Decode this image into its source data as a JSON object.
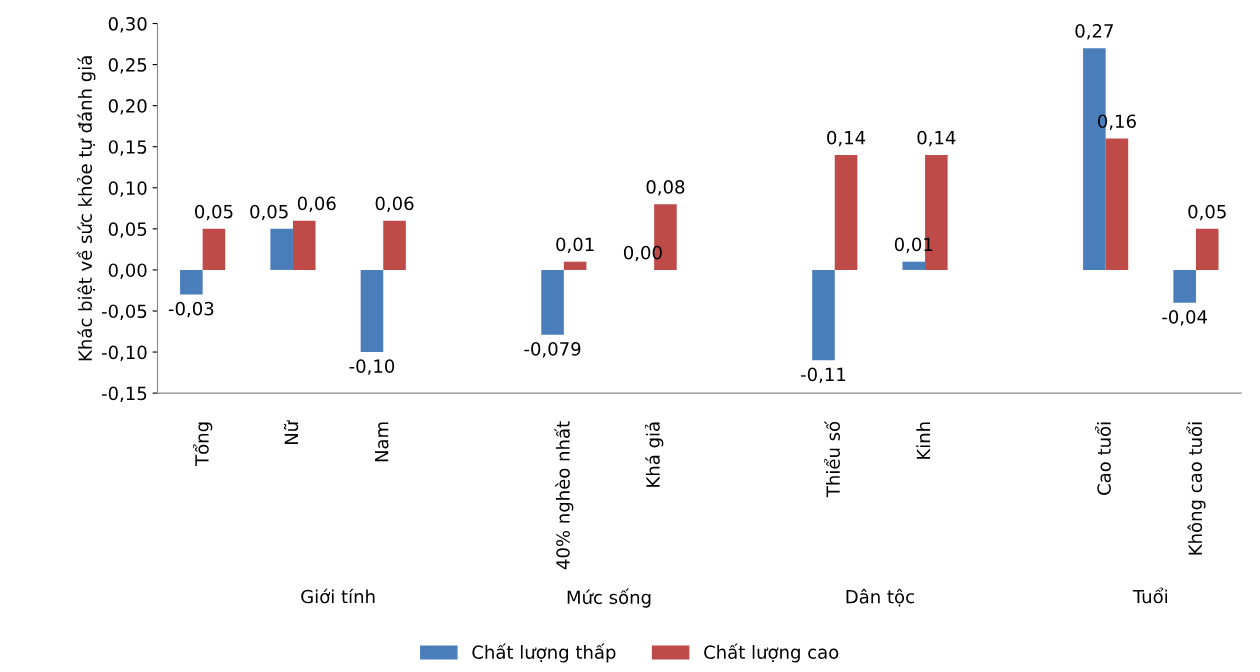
{
  "chart_data": {
    "type": "bar",
    "ylabel": "Khác biệt về sức khỏe tự đánh giá",
    "categories": [
      "Tổng",
      "Nữ",
      "Nam",
      null,
      "40% nghèo nhất",
      "Khá giả",
      null,
      "Thiểu số",
      "Kinh",
      null,
      "Cao tuổi",
      "Không cao tuổi"
    ],
    "series": [
      {
        "name": "Chất lượng thấp",
        "color": "#4a7ebb",
        "values": [
          -0.03,
          0.05,
          -0.1,
          null,
          -0.079,
          0.0,
          null,
          -0.11,
          0.01,
          null,
          0.27,
          -0.04
        ],
        "value_labels": [
          "-0,03",
          "0,05",
          "-0,10",
          null,
          "-0,079",
          "0,00",
          null,
          "-0,11",
          "0,01",
          null,
          "0,27",
          "-0,04"
        ]
      },
      {
        "name": "Chất lượng cao",
        "color": "#be4b48",
        "values": [
          0.05,
          0.06,
          0.06,
          null,
          0.01,
          0.08,
          null,
          0.14,
          0.14,
          null,
          0.16,
          0.05
        ],
        "value_labels": [
          "0,05",
          "0,06",
          "0,06",
          null,
          "0,01",
          "0,08",
          null,
          "0,14",
          "0,14",
          null,
          "0,16",
          "0,05"
        ]
      }
    ],
    "ylim": [
      -0.15,
      0.3
    ],
    "yticks": [
      {
        "value": -0.15,
        "label": "-0,15"
      },
      {
        "value": -0.1,
        "label": "-0,10"
      },
      {
        "value": -0.05,
        "label": "-0,05"
      },
      {
        "value": 0,
        "label": "0,00"
      },
      {
        "value": 0.05,
        "label": "0,05"
      },
      {
        "value": 0.1,
        "label": "0,10"
      },
      {
        "value": 0.15,
        "label": "0,15"
      },
      {
        "value": 0.2,
        "label": "0,20"
      },
      {
        "value": 0.25,
        "label": "0,25"
      },
      {
        "value": 0.3,
        "label": "0,30"
      }
    ],
    "annotations": [
      "Giới tính",
      "Mức sống",
      "Dân tộc",
      "Tuổi"
    ],
    "grid": false,
    "legend": "bottom"
  }
}
